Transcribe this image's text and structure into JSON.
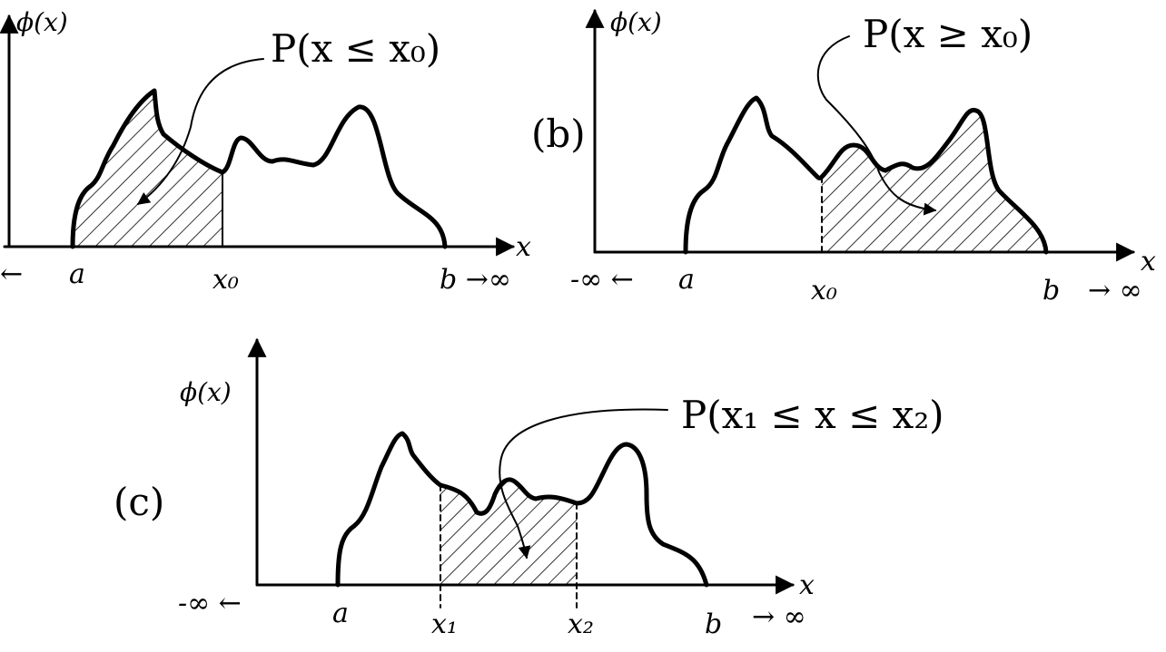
{
  "panel_a": {
    "ylabel": "ϕ(x)",
    "annotation": "P(x ≤ x₀)",
    "left_inf": "←",
    "a": "a",
    "x0": "x₀",
    "b_inf": "b →∞",
    "xlabel": "x"
  },
  "panel_b": {
    "tag": "(b)",
    "ylabel": "ϕ(x)",
    "annotation": "P(x ≥ x₀)",
    "left_inf": "-∞ ←",
    "a": "a",
    "x0": "x₀",
    "b": "b",
    "right_inf": "→ ∞",
    "xlabel": "x"
  },
  "panel_c": {
    "tag": "(c)",
    "ylabel": "ϕ(x)",
    "annotation": "P(x₁ ≤ x ≤ x₂)",
    "left_inf": "-∞ ←",
    "a": "a",
    "x1": "x₁",
    "x2": "x₂",
    "b": "b",
    "right_inf": "→ ∞",
    "xlabel": "x"
  }
}
